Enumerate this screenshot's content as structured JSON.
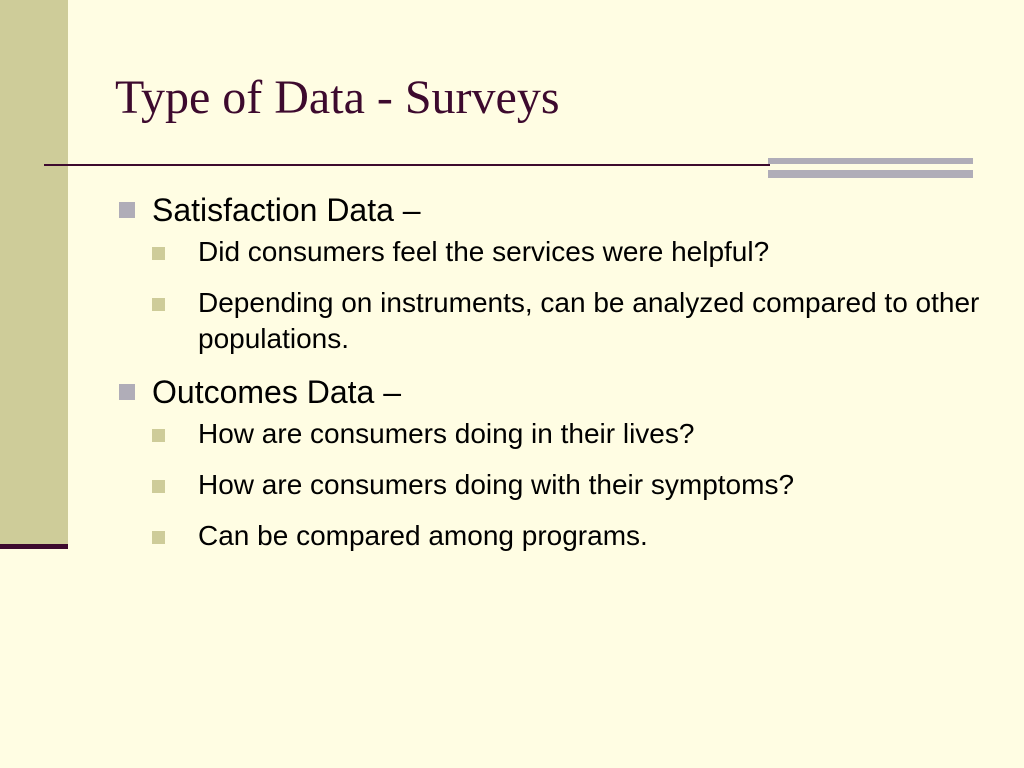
{
  "slide": {
    "title": "Type of Data - Surveys",
    "bullets": [
      {
        "text": "Satisfaction Data –",
        "items": [
          "Did consumers feel the services were helpful?",
          "Depending on instruments, can be analyzed compared to other populations."
        ]
      },
      {
        "text": "Outcomes Data –",
        "items": [
          "How are consumers doing in their lives?",
          "How are consumers doing with their symptoms?",
          "Can be compared among programs."
        ]
      }
    ]
  },
  "colors": {
    "background": "#FFFDE3",
    "left_bar": "#CECC99",
    "title_text": "#3D0A2E",
    "rule": "#3D0A2E",
    "accent_lines": "#B0ADB8",
    "bullet_level1": "#B0ADB8",
    "bullet_level2": "#CECC99"
  }
}
